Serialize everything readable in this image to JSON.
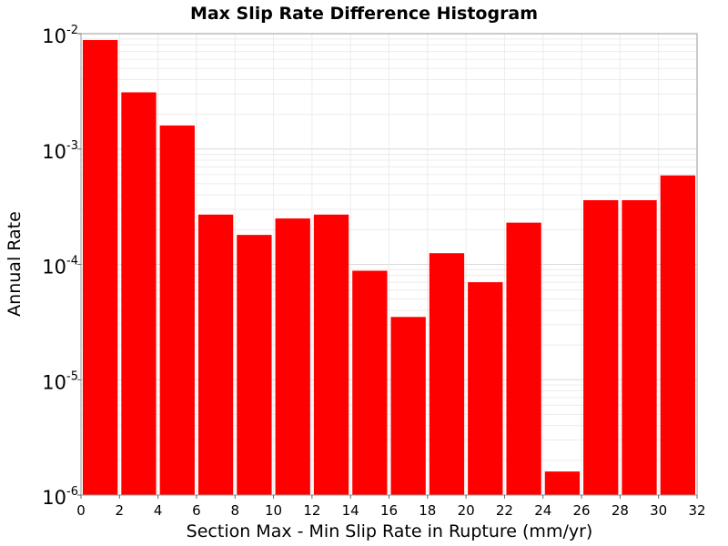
{
  "chart_data": {
    "type": "bar",
    "title": "Max Slip Rate Difference Histogram",
    "xlabel": "Section Max - Min Slip Rate in Rupture (mm/yr)",
    "ylabel": "Annual Rate",
    "x_bin_width": 2,
    "x_bin_starts": [
      0,
      2,
      4,
      6,
      8,
      10,
      12,
      14,
      16,
      18,
      20,
      22,
      24,
      26,
      28,
      30
    ],
    "values": [
      0.0088,
      0.0031,
      0.0016,
      0.00027,
      0.00018,
      0.00025,
      0.00027,
      8.8e-05,
      3.5e-05,
      0.000125,
      7e-05,
      0.00023,
      1.6e-06,
      0.00036,
      0.00036,
      0.00059
    ],
    "xlim": [
      0,
      32
    ],
    "ylim": [
      1e-06,
      0.01
    ],
    "yscale": "log",
    "x_ticks": [
      "0",
      "2",
      "4",
      "6",
      "8",
      "10",
      "12",
      "14",
      "16",
      "18",
      "20",
      "22",
      "24",
      "26",
      "28",
      "30",
      "32"
    ],
    "y_ticks": [
      {
        "base": "10",
        "exp": "-2"
      },
      {
        "base": "10",
        "exp": "-3"
      },
      {
        "base": "10",
        "exp": "-4"
      },
      {
        "base": "10",
        "exp": "-5"
      },
      {
        "base": "10",
        "exp": "-6"
      }
    ],
    "bar_color": "#ff0000",
    "grid": true
  }
}
